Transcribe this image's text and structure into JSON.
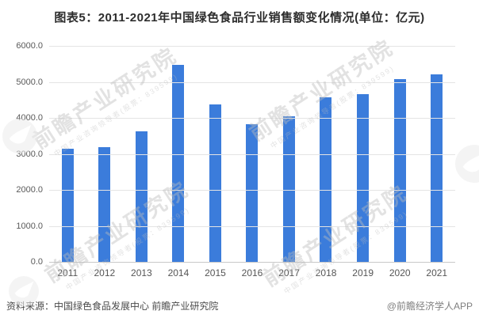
{
  "title": "图表5：2011-2021年中国绿色食品行业销售额变化情况(单位：亿元)",
  "chart_data": {
    "type": "bar",
    "title": "图表5：2011-2021年中国绿色食品行业销售额变化情况(单位：亿元)",
    "unit": "亿元",
    "categories": [
      "2011",
      "2012",
      "2013",
      "2014",
      "2015",
      "2016",
      "2017",
      "2018",
      "2019",
      "2020",
      "2021"
    ],
    "values": [
      3135.5,
      3177.6,
      3625.2,
      5480.5,
      4383.2,
      3829.8,
      4034.0,
      4563.9,
      4656.9,
      5081.0,
      5218.6
    ],
    "xlabel": "",
    "ylabel": "",
    "ylim": [
      0,
      6000
    ],
    "ytick_step": 1000,
    "ytick_labels": [
      "0.0",
      "1000.0",
      "2000.0",
      "3000.0",
      "4000.0",
      "5000.0",
      "6000.0"
    ],
    "grid": true,
    "legend": null,
    "bar_color": "#3b7cdb"
  },
  "footer": {
    "source": "资料来源：中国绿色食品发展中心 前瞻产业研究院",
    "credit": "@前瞻经济学人APP"
  },
  "watermark": {
    "text": "前瞻产业研究院",
    "subtext": "中国产业咨询领导者(股票：839599)"
  },
  "colors": {
    "bar": "#3b7cdb",
    "gridline": "#e4e4e4",
    "axis_line": "#c9c9c9",
    "title_text": "#2d2d2d",
    "tick_text": "#595959",
    "watermark": "#bcbcbc"
  }
}
